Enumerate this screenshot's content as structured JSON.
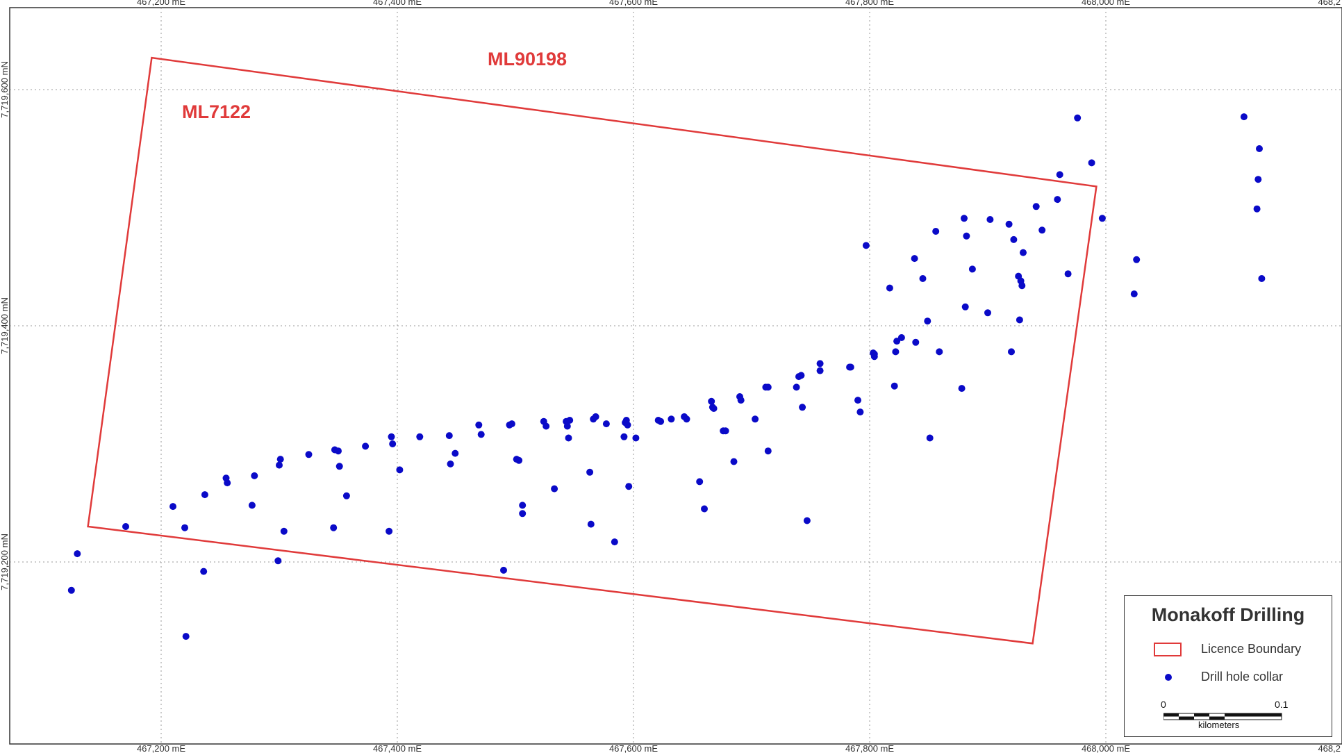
{
  "map": {
    "licence_labels": [
      "ML90198",
      "ML7122"
    ],
    "easting_ticks": [
      "467,200 mE",
      "467,400 mE",
      "467,600 mE",
      "467,800 mE",
      "468,000 mE",
      "468,2"
    ],
    "northing_ticks": [
      "7,719,600 mN",
      "7,719,400 mN",
      "7,719,200 mN"
    ],
    "colors": {
      "boundary": "#e03a3a",
      "collar": "#0a0ac8",
      "grid": "#999999"
    }
  },
  "chart_data": {
    "type": "scatter",
    "x_unit": "mE",
    "y_unit": "mN",
    "xlim": [
      467080,
      468195
    ],
    "ylim": [
      7719040,
      7719670
    ],
    "licence_boundary": [
      [
        467192,
        7719627
      ],
      [
        467992,
        7719518
      ],
      [
        467938,
        7719131
      ],
      [
        467138,
        7719230
      ]
    ],
    "drill_hole_collars": [
      [
        467124,
        7719176
      ],
      [
        467129,
        7719207
      ],
      [
        467170,
        7719230
      ],
      [
        467210,
        7719247
      ],
      [
        467220,
        7719229
      ],
      [
        467221,
        7719137
      ],
      [
        467236,
        7719192
      ],
      [
        467237,
        7719257
      ],
      [
        467255,
        7719271
      ],
      [
        467256,
        7719267
      ],
      [
        467277,
        7719248
      ],
      [
        467279,
        7719273
      ],
      [
        467299,
        7719201
      ],
      [
        467300,
        7719282
      ],
      [
        467301,
        7719287
      ],
      [
        467304,
        7719226
      ],
      [
        467325,
        7719291
      ],
      [
        467346,
        7719229
      ],
      [
        467347,
        7719295
      ],
      [
        467350,
        7719294
      ],
      [
        467351,
        7719281
      ],
      [
        467357,
        7719256
      ],
      [
        467373,
        7719298
      ],
      [
        467393,
        7719226
      ],
      [
        467395,
        7719306
      ],
      [
        467396,
        7719300
      ],
      [
        467402,
        7719278
      ],
      [
        467419,
        7719306
      ],
      [
        467444,
        7719307
      ],
      [
        467445,
        7719283
      ],
      [
        467449,
        7719292
      ],
      [
        467469,
        7719316
      ],
      [
        467471,
        7719308
      ],
      [
        467490,
        7719193
      ],
      [
        467495,
        7719316
      ],
      [
        467497,
        7719317
      ],
      [
        467501,
        7719287
      ],
      [
        467503,
        7719286
      ],
      [
        467506,
        7719248
      ],
      [
        467506,
        7719241
      ],
      [
        467524,
        7719319
      ],
      [
        467526,
        7719315
      ],
      [
        467533,
        7719262
      ],
      [
        467543,
        7719319
      ],
      [
        467544,
        7719315
      ],
      [
        467545,
        7719305
      ],
      [
        467546,
        7719320
      ],
      [
        467563,
        7719276
      ],
      [
        467564,
        7719232
      ],
      [
        467566,
        7719321
      ],
      [
        467568,
        7719323
      ],
      [
        467577,
        7719317
      ],
      [
        467584,
        7719217
      ],
      [
        467592,
        7719306
      ],
      [
        467593,
        7719318
      ],
      [
        467594,
        7719320
      ],
      [
        467595,
        7719316
      ],
      [
        467596,
        7719264
      ],
      [
        467602,
        7719305
      ],
      [
        467621,
        7719320
      ],
      [
        467623,
        7719319
      ],
      [
        467632,
        7719321
      ],
      [
        467643,
        7719323
      ],
      [
        467645,
        7719321
      ],
      [
        467656,
        7719268
      ],
      [
        467660,
        7719245
      ],
      [
        467666,
        7719336
      ],
      [
        467667,
        7719331
      ],
      [
        467668,
        7719330
      ],
      [
        467676,
        7719311
      ],
      [
        467678,
        7719311
      ],
      [
        467685,
        7719285
      ],
      [
        467690,
        7719340
      ],
      [
        467691,
        7719337
      ],
      [
        467703,
        7719321
      ],
      [
        467712,
        7719348
      ],
      [
        467714,
        7719348
      ],
      [
        467714,
        7719294
      ],
      [
        467738,
        7719348
      ],
      [
        467740,
        7719357
      ],
      [
        467742,
        7719358
      ],
      [
        467743,
        7719331
      ],
      [
        467747,
        7719235
      ],
      [
        467758,
        7719368
      ],
      [
        467758,
        7719362
      ],
      [
        467783,
        7719365
      ],
      [
        467784,
        7719365
      ],
      [
        467790,
        7719337
      ],
      [
        467792,
        7719327
      ],
      [
        467797,
        7719468
      ],
      [
        467803,
        7719377
      ],
      [
        467804,
        7719376
      ],
      [
        467804,
        7719374
      ],
      [
        467817,
        7719432
      ],
      [
        467821,
        7719349
      ],
      [
        467822,
        7719378
      ],
      [
        467823,
        7719387
      ],
      [
        467827,
        7719390
      ],
      [
        467838,
        7719457
      ],
      [
        467839,
        7719386
      ],
      [
        467845,
        7719440
      ],
      [
        467849,
        7719404
      ],
      [
        467851,
        7719305
      ],
      [
        467856,
        7719480
      ],
      [
        467859,
        7719378
      ],
      [
        467881,
        7719416
      ],
      [
        467878,
        7719347
      ],
      [
        467880,
        7719491
      ],
      [
        467882,
        7719476
      ],
      [
        467887,
        7719448
      ],
      [
        467900,
        7719411
      ],
      [
        467902,
        7719490
      ],
      [
        467918,
        7719486
      ],
      [
        467920,
        7719378
      ],
      [
        467922,
        7719473
      ],
      [
        467926,
        7719442
      ],
      [
        467927,
        7719405
      ],
      [
        467928,
        7719438
      ],
      [
        467929,
        7719434
      ],
      [
        467930,
        7719462
      ],
      [
        467941,
        7719501
      ],
      [
        467946,
        7719481
      ],
      [
        467959,
        7719507
      ],
      [
        467961,
        7719528
      ],
      [
        467968,
        7719444
      ],
      [
        467976,
        7719576
      ],
      [
        467988,
        7719538
      ],
      [
        467997,
        7719491
      ],
      [
        468024,
        7719427
      ],
      [
        468026,
        7719456
      ],
      [
        468117,
        7719577
      ],
      [
        468128,
        7719499
      ],
      [
        468129,
        7719524
      ],
      [
        468130,
        7719550
      ],
      [
        468132,
        7719440
      ]
    ]
  },
  "legend": {
    "title": "Monakoff Drilling",
    "items": [
      "Licence Boundary",
      "Drill hole collar"
    ],
    "scale_zero": "0",
    "scale_max": "0.1",
    "scale_unit": "kilometers"
  }
}
